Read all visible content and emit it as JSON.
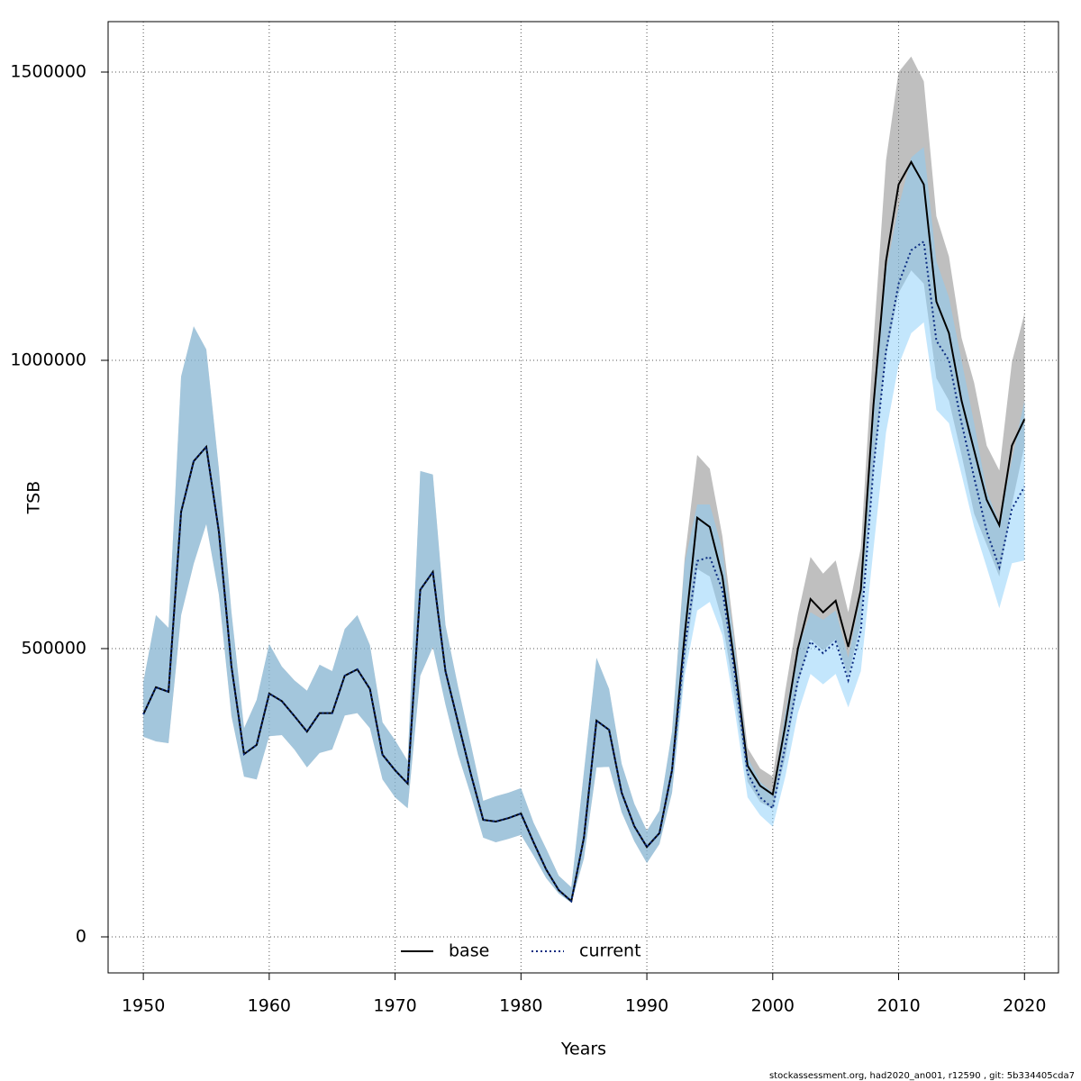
{
  "chart_data": {
    "type": "band-line",
    "x_label": "Years",
    "y_label": "TSB",
    "footer": "stockassessment.org, had2020_an001, r12590 , git: 5b334405cda7",
    "x": [
      1950,
      1951,
      1952,
      1953,
      1954,
      1955,
      1956,
      1957,
      1958,
      1959,
      1960,
      1961,
      1962,
      1963,
      1964,
      1965,
      1966,
      1967,
      1968,
      1969,
      1970,
      1971,
      1972,
      1973,
      1974,
      1975,
      1976,
      1977,
      1978,
      1979,
      1980,
      1981,
      1982,
      1983,
      1984,
      1985,
      1986,
      1987,
      1988,
      1989,
      1990,
      1991,
      1992,
      1993,
      1994,
      1995,
      1996,
      1997,
      1998,
      1999,
      2000,
      2001,
      2002,
      2003,
      2004,
      2005,
      2006,
      2007,
      2008,
      2009,
      2010,
      2011,
      2012,
      2013,
      2014,
      2015,
      2016,
      2017,
      2018,
      2019,
      2020
    ],
    "xlim": [
      1947.2,
      2022.7
    ],
    "xticks": [
      1950,
      1960,
      1970,
      1980,
      1990,
      2000,
      2010,
      2020
    ],
    "ylim": [
      -62500,
      1587500
    ],
    "yticks": [
      0,
      500000,
      1000000,
      1500000
    ],
    "grid": true,
    "legend": "bottom",
    "series": [
      {
        "name": "base",
        "color": "#000000",
        "line_style": "solid",
        "band_color": "rgba(128,128,128,0.5)",
        "values": [
          386000,
          433000,
          425000,
          737000,
          825000,
          850000,
          703000,
          469000,
          317000,
          333000,
          422000,
          409000,
          383000,
          356000,
          388000,
          388000,
          453000,
          464000,
          430000,
          316000,
          289000,
          266000,
          602000,
          633000,
          461000,
          372000,
          284000,
          203000,
          200000,
          206000,
          214000,
          164000,
          117000,
          81000,
          62000,
          172000,
          375000,
          359000,
          250000,
          192000,
          156000,
          180000,
          289000,
          523000,
          727000,
          711000,
          625000,
          469000,
          297000,
          262000,
          247000,
          367000,
          500000,
          586000,
          563000,
          583000,
          503000,
          602000,
          922000,
          1172000,
          1305000,
          1344000,
          1305000,
          1102000,
          1047000,
          930000,
          844000,
          758000,
          714000,
          852000,
          898000
        ],
        "high": [
          442000,
          558000,
          536000,
          972000,
          1059000,
          1019000,
          812000,
          563000,
          362000,
          411000,
          508000,
          469000,
          445000,
          427000,
          472000,
          461000,
          534000,
          558000,
          506000,
          372000,
          341000,
          305000,
          808000,
          802000,
          541000,
          434000,
          336000,
          236000,
          244000,
          250000,
          258000,
          198000,
          153000,
          106000,
          86000,
          286000,
          484000,
          430000,
          300000,
          231000,
          184000,
          219000,
          356000,
          656000,
          836000,
          812000,
          695000,
          516000,
          328000,
          292000,
          278000,
          427000,
          559000,
          659000,
          630000,
          653000,
          563000,
          675000,
          1031000,
          1347000,
          1500000,
          1527000,
          1484000,
          1250000,
          1180000,
          1039000,
          961000,
          852000,
          809000,
          997000,
          1081000
        ],
        "low": [
          347000,
          339000,
          336000,
          558000,
          647000,
          716000,
          594000,
          383000,
          278000,
          273000,
          348000,
          350000,
          325000,
          294000,
          319000,
          325000,
          384000,
          388000,
          362000,
          273000,
          242000,
          223000,
          453000,
          503000,
          403000,
          316000,
          247000,
          172000,
          164000,
          170000,
          177000,
          141000,
          102000,
          75000,
          59000,
          136000,
          294000,
          295000,
          216000,
          166000,
          128000,
          161000,
          250000,
          469000,
          638000,
          625000,
          547000,
          414000,
          269000,
          234000,
          222000,
          312000,
          438000,
          516000,
          497000,
          516000,
          453000,
          544000,
          812000,
          1008000,
          1117000,
          1156000,
          1133000,
          969000,
          930000,
          836000,
          734000,
          680000,
          625000,
          750000,
          852000
        ]
      },
      {
        "name": "current",
        "color": "#0a2a80",
        "line_style": "dotted",
        "band_color": "rgba(135,206,250,0.5)",
        "values": [
          386000,
          433000,
          425000,
          737000,
          825000,
          850000,
          703000,
          469000,
          317000,
          333000,
          422000,
          409000,
          383000,
          356000,
          388000,
          388000,
          453000,
          464000,
          430000,
          316000,
          289000,
          266000,
          602000,
          633000,
          461000,
          372000,
          284000,
          203000,
          200000,
          206000,
          214000,
          164000,
          117000,
          81000,
          62000,
          172000,
          375000,
          359000,
          250000,
          192000,
          156000,
          180000,
          289000,
          500000,
          652000,
          659000,
          602000,
          453000,
          284000,
          242000,
          223000,
          331000,
          445000,
          512000,
          492000,
          512000,
          445000,
          531000,
          812000,
          1016000,
          1133000,
          1191000,
          1206000,
          1034000,
          1000000,
          891000,
          797000,
          703000,
          641000,
          742000,
          781000
        ],
        "high": [
          442000,
          558000,
          536000,
          972000,
          1059000,
          1019000,
          812000,
          563000,
          362000,
          411000,
          508000,
          469000,
          445000,
          427000,
          472000,
          461000,
          534000,
          558000,
          506000,
          372000,
          341000,
          305000,
          808000,
          802000,
          541000,
          434000,
          336000,
          236000,
          244000,
          250000,
          258000,
          198000,
          153000,
          106000,
          86000,
          286000,
          484000,
          430000,
          300000,
          231000,
          184000,
          219000,
          356000,
          648000,
          750000,
          750000,
          672000,
          500000,
          312000,
          269000,
          250000,
          388000,
          500000,
          563000,
          550000,
          566000,
          484000,
          594000,
          937000,
          1156000,
          1266000,
          1352000,
          1370000,
          1172000,
          1109000,
          1000000,
          891000,
          773000,
          719000,
          828000,
          930000
        ],
        "low": [
          347000,
          339000,
          336000,
          558000,
          647000,
          716000,
          594000,
          383000,
          278000,
          273000,
          348000,
          350000,
          325000,
          294000,
          319000,
          325000,
          384000,
          388000,
          362000,
          273000,
          242000,
          223000,
          453000,
          503000,
          403000,
          316000,
          247000,
          172000,
          164000,
          170000,
          177000,
          141000,
          102000,
          75000,
          59000,
          136000,
          294000,
          295000,
          216000,
          166000,
          128000,
          161000,
          250000,
          453000,
          566000,
          581000,
          523000,
          391000,
          242000,
          211000,
          191000,
          278000,
          388000,
          456000,
          438000,
          456000,
          398000,
          461000,
          672000,
          875000,
          992000,
          1047000,
          1066000,
          914000,
          891000,
          802000,
          711000,
          641000,
          570000,
          648000,
          653000
        ]
      }
    ]
  }
}
